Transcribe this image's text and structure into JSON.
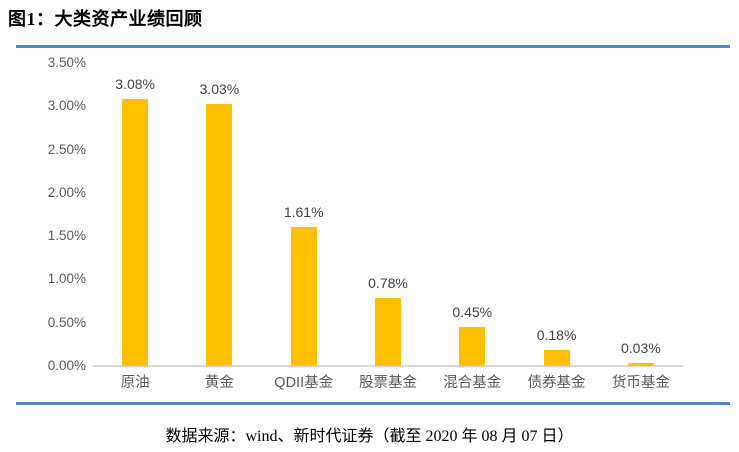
{
  "title": "图1：大类资产业绩回顾",
  "source": "数据来源：wind、新时代证券（截至 2020 年 08 月 07 日）",
  "colors": {
    "bar": "#FFC000",
    "rule": "#4E8BC9",
    "baseline": "#D9D9D9",
    "axis_text": "#595959",
    "label_text": "#404040"
  },
  "chart_data": {
    "type": "bar",
    "title": "图1：大类资产业绩回顾",
    "categories": [
      "原油",
      "黄金",
      "QDII基金",
      "股票基金",
      "混合基金",
      "债券基金",
      "货币基金"
    ],
    "values": [
      3.08,
      3.03,
      1.61,
      0.78,
      0.45,
      0.18,
      0.03
    ],
    "value_labels": [
      "3.08%",
      "3.03%",
      "1.61%",
      "0.78%",
      "0.45%",
      "0.18%",
      "0.03%"
    ],
    "yticks": [
      "3.50%",
      "3.00%",
      "2.50%",
      "2.00%",
      "1.50%",
      "1.00%",
      "0.50%",
      "0.00%"
    ],
    "ylim": [
      0,
      3.5
    ],
    "xlabel": "",
    "ylabel": "",
    "grid": false,
    "legend": null,
    "bar_color": "#FFC000"
  }
}
